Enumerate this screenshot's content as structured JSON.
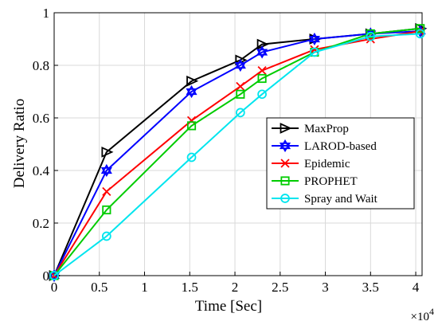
{
  "chart_data": {
    "type": "line",
    "title": "",
    "xlabel": "Time [Sec]",
    "ylabel": "Delivery Ratio",
    "x_exponent_base": "×10",
    "x_exponent_power": "4",
    "xlim": [
      0,
      4.07
    ],
    "ylim": [
      0,
      1
    ],
    "x_ticks": [
      0,
      0.5,
      1,
      1.5,
      2,
      2.5,
      3,
      3.5,
      4
    ],
    "x_tick_labels": [
      "0",
      "0.5",
      "1",
      "1.5",
      "2",
      "2.5",
      "3",
      "3.5",
      "4"
    ],
    "y_ticks": [
      0,
      0.2,
      0.4,
      0.6,
      0.8,
      1
    ],
    "y_tick_labels": [
      "0",
      "0.2",
      "0.4",
      "0.6",
      "0.8",
      "1"
    ],
    "grid": true,
    "legend_position": "right",
    "x": [
      0,
      0.58,
      1.52,
      2.06,
      2.3,
      2.88,
      3.5,
      4.05
    ],
    "series": [
      {
        "name": "MaxProp",
        "marker": "triangle-right",
        "color": "#000000",
        "values": [
          0.0,
          0.47,
          0.74,
          0.82,
          0.88,
          0.9,
          0.92,
          0.94
        ]
      },
      {
        "name": "LAROD-based",
        "marker": "hexagram",
        "color": "#0000ff",
        "values": [
          0.0,
          0.4,
          0.7,
          0.8,
          0.85,
          0.9,
          0.92,
          0.93
        ]
      },
      {
        "name": "Epidemic",
        "marker": "x",
        "color": "#ff0000",
        "values": [
          0.0,
          0.32,
          0.59,
          0.72,
          0.78,
          0.86,
          0.9,
          0.93
        ]
      },
      {
        "name": "PROPHET",
        "marker": "square",
        "color": "#00cc00",
        "values": [
          0.0,
          0.25,
          0.57,
          0.69,
          0.75,
          0.85,
          0.92,
          0.94
        ]
      },
      {
        "name": "Spray and Wait",
        "marker": "circle",
        "color": "#00e5ee",
        "values": [
          0.0,
          0.15,
          0.45,
          0.62,
          0.69,
          0.85,
          0.91,
          0.92
        ]
      }
    ]
  }
}
